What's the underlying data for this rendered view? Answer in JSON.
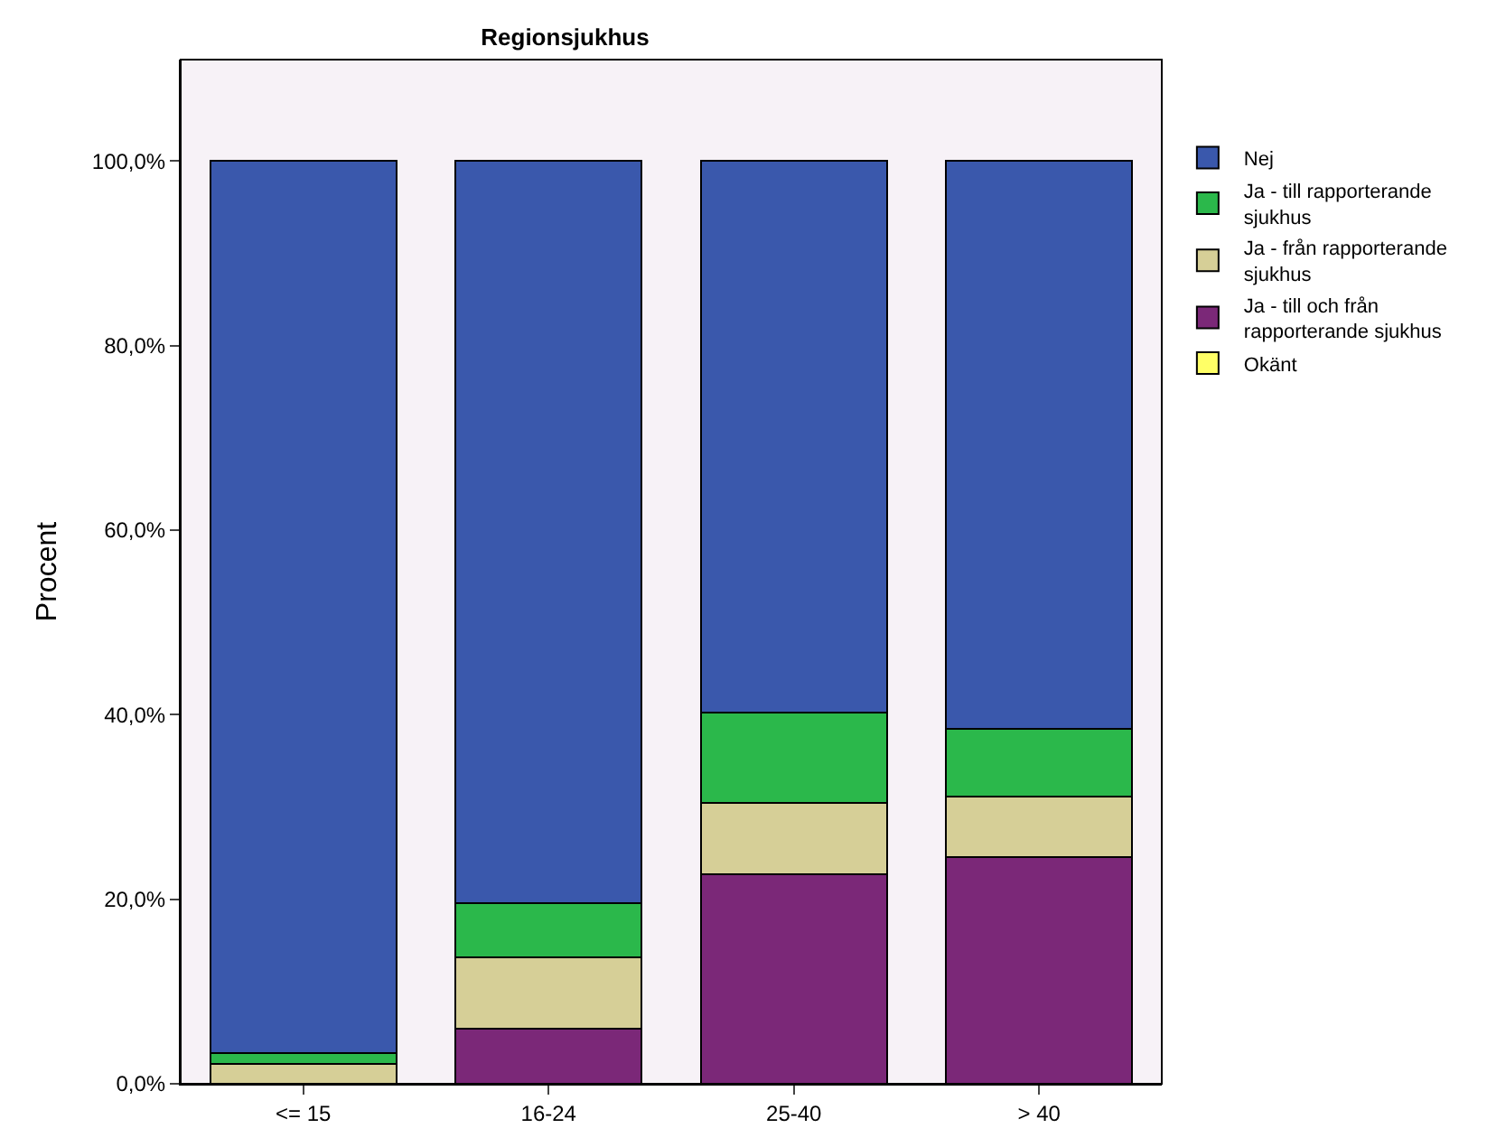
{
  "chart_data": {
    "type": "bar",
    "stacked": true,
    "title": "Regionsjukhus",
    "ylabel": "Procent",
    "categories": [
      "<= 15",
      "16-24",
      "25-40",
      "> 40"
    ],
    "series": [
      {
        "name": "Okänt",
        "color": "#ffff66",
        "values": [
          0,
          0,
          0,
          0
        ]
      },
      {
        "name": "Ja - till och från rapporterande sjukhus",
        "color": "#7b2878",
        "values": [
          0,
          6.0,
          22.7,
          24.6
        ]
      },
      {
        "name": "Ja - från rapporterande sjukhus",
        "color": "#d6cf97",
        "values": [
          2.2,
          7.7,
          7.7,
          6.5
        ]
      },
      {
        "name": "Ja - till rapporterande sjukhus",
        "color": "#2bb84b",
        "values": [
          1.1,
          5.9,
          9.8,
          7.4
        ]
      },
      {
        "name": "Nej",
        "color": "#3a58ac",
        "values": [
          96.7,
          80.4,
          59.8,
          61.5
        ]
      }
    ],
    "ylim": [
      0,
      111
    ],
    "yticks": [
      {
        "value": 0,
        "label": "0,0%"
      },
      {
        "value": 20,
        "label": "20,0%"
      },
      {
        "value": 40,
        "label": "40,0%"
      },
      {
        "value": 60,
        "label": "60,0%"
      },
      {
        "value": 80,
        "label": "80,0%"
      },
      {
        "value": 100,
        "label": "100,0%"
      }
    ],
    "grid": false,
    "legend": "top right"
  }
}
